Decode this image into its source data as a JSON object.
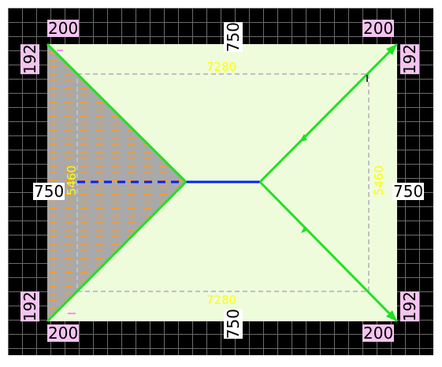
{
  "labels": {
    "overhang_top_left": "200",
    "overhang_top_right": "200",
    "overhang_bottom_left": "200",
    "overhang_bottom_right": "200",
    "side_left_top": "192",
    "side_left_bottom": "192",
    "side_right_top": "192",
    "side_right_bottom": "192",
    "eave_top": "750",
    "eave_bottom": "750",
    "eave_left": "750",
    "eave_right": "750",
    "wall_top": "7280",
    "wall_bottom": "7280",
    "wall_left": "5460",
    "wall_right": "5460"
  },
  "colors": {
    "background": "#000000",
    "grid": "#6b6b6b",
    "roof_fill": "#eefcdc",
    "selected_face": "#a9a9a9",
    "hatch": "#ff9a1a",
    "hip_line": "#22e022",
    "ridge_line": "#0020ff",
    "wall_outline": "#c0c0c0",
    "overhang_label_bg": "#f4c4f0",
    "dimension_text": "#ffff00"
  }
}
